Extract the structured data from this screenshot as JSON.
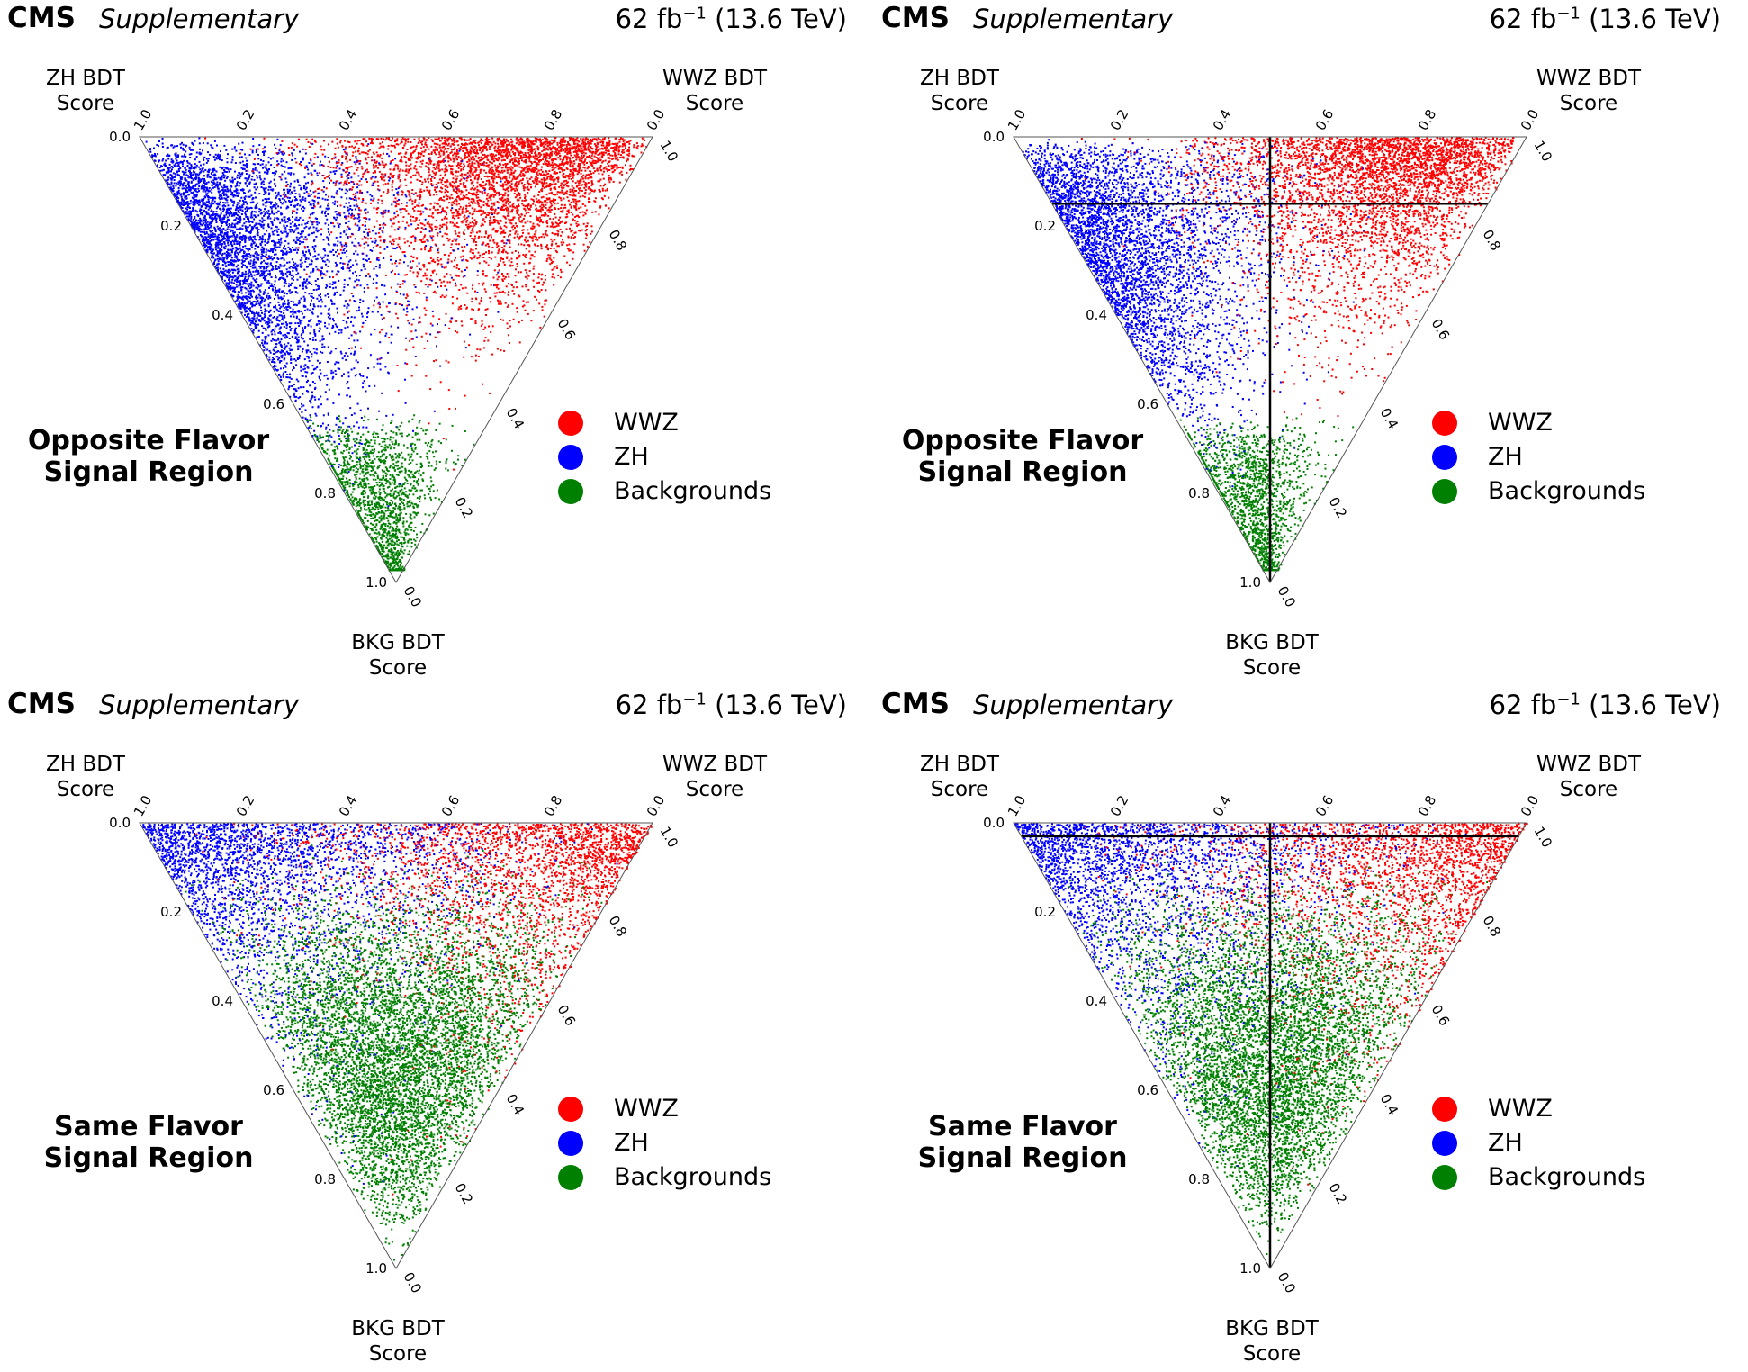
{
  "header": {
    "experiment": "CMS",
    "status": "Supplementary",
    "lumi_value": "62 fb",
    "lumi_exp": "−1",
    "energy": " (13.6 TeV)"
  },
  "axes": {
    "zh": [
      "ZH BDT",
      "Score"
    ],
    "wwz": [
      "WWZ BDT",
      "Score"
    ],
    "bkg": [
      "BKG BDT",
      "Score"
    ],
    "ticks": [
      "0.0",
      "0.2",
      "0.4",
      "0.6",
      "0.8",
      "1.0"
    ]
  },
  "legend": [
    {
      "label": "WWZ",
      "color": "#ff0000"
    },
    {
      "label": "ZH",
      "color": "#0000ff"
    },
    {
      "label": "Backgrounds",
      "color": "#008000"
    }
  ],
  "colors": {
    "wwz": "#ff0000",
    "zh": "#0000ff",
    "bkg": "#008000",
    "axis": "#000000"
  },
  "chart_data": [
    {
      "type": "scatter",
      "subtype": "ternary",
      "region": [
        "Opposite Flavor",
        "Signal Region"
      ],
      "components": [
        "WWZ BDT Score",
        "ZH BDT Score",
        "BKG BDT Score"
      ],
      "cuts": null,
      "series": [
        {
          "name": "WWZ",
          "concentration": "high WWZ score corner, red band along WWZ-BKG edge"
        },
        {
          "name": "ZH",
          "concentration": "high ZH score corner, spread along ZH-BKG edge"
        },
        {
          "name": "Backgrounds",
          "concentration": "narrow tail toward high BKG score corner"
        }
      ]
    },
    {
      "type": "scatter",
      "subtype": "ternary",
      "region": [
        "Opposite Flavor",
        "Signal Region"
      ],
      "components": [
        "WWZ BDT Score",
        "ZH BDT Score",
        "BKG BDT Score"
      ],
      "cuts": {
        "bkg_score_below": 0.15,
        "wwz_equals_zh_split": true
      },
      "series": [
        {
          "name": "WWZ",
          "concentration": "high WWZ score corner"
        },
        {
          "name": "ZH",
          "concentration": "high ZH score corner"
        },
        {
          "name": "Backgrounds",
          "concentration": "high BKG score corner"
        }
      ]
    },
    {
      "type": "scatter",
      "subtype": "ternary",
      "region": [
        "Same Flavor",
        "Signal Region"
      ],
      "components": [
        "WWZ BDT Score",
        "ZH BDT Score",
        "BKG BDT Score"
      ],
      "cuts": null,
      "series": [
        {
          "name": "WWZ",
          "concentration": "near top edge, toward WWZ corner"
        },
        {
          "name": "ZH",
          "concentration": "near top edge, toward ZH corner"
        },
        {
          "name": "Backgrounds",
          "concentration": "dominant, filling lower triangle toward BKG corner"
        }
      ]
    },
    {
      "type": "scatter",
      "subtype": "ternary",
      "region": [
        "Same Flavor",
        "Signal Region"
      ],
      "components": [
        "WWZ BDT Score",
        "ZH BDT Score",
        "BKG BDT Score"
      ],
      "cuts": {
        "bkg_score_below": 0.03,
        "wwz_equals_zh_split": true
      },
      "series": [
        {
          "name": "WWZ",
          "concentration": "near top edge, toward WWZ corner"
        },
        {
          "name": "ZH",
          "concentration": "near top edge, toward ZH corner"
        },
        {
          "name": "Backgrounds",
          "concentration": "dominant, filling lower triangle toward BKG corner"
        }
      ]
    }
  ]
}
